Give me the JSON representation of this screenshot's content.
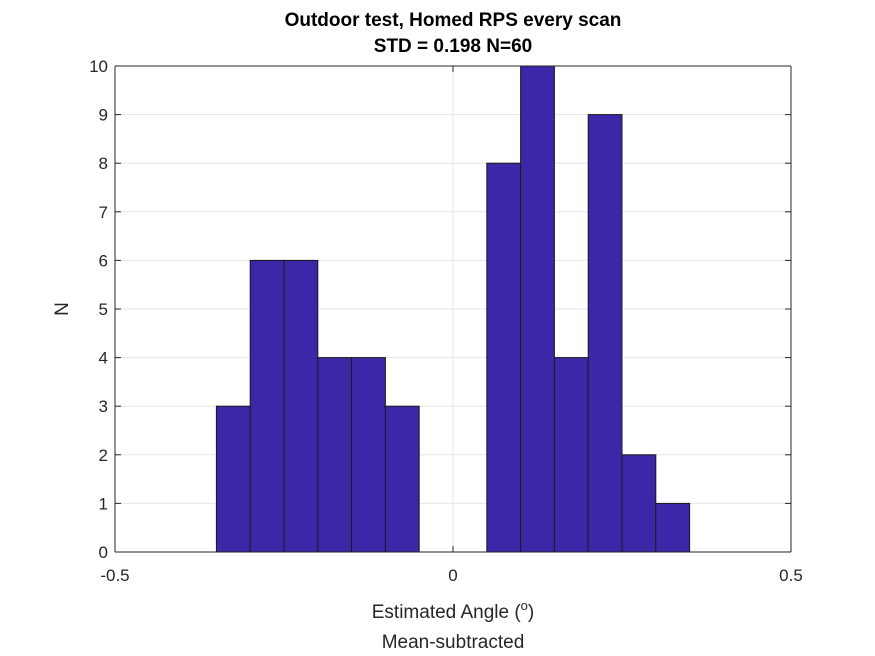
{
  "chart_data": {
    "type": "bar",
    "title": "Outdoor test, Homed RPS every scan",
    "subtitle": "STD = 0.198 N=60",
    "xlabel": "Estimated Angle (",
    "xlabel_superscript": "o",
    "xlabel_suffix": ")",
    "xlabel_line2": "Mean-subtracted",
    "ylabel": "N",
    "xlim": [
      -0.5,
      0.5
    ],
    "ylim": [
      0,
      10
    ],
    "xticks": [
      -0.5,
      0,
      0.5
    ],
    "xtick_labels": [
      "-0.5",
      "0",
      "0.5"
    ],
    "yticks": [
      0,
      1,
      2,
      3,
      4,
      5,
      6,
      7,
      8,
      9,
      10
    ],
    "ytick_labels": [
      "0",
      "1",
      "2",
      "3",
      "4",
      "5",
      "6",
      "7",
      "8",
      "9",
      "10"
    ],
    "bin_width": 0.05,
    "bin_starts": [
      -0.35,
      -0.3,
      -0.25,
      -0.2,
      -0.15,
      -0.1,
      -0.05,
      0.0,
      0.05,
      0.1,
      0.15,
      0.2,
      0.25,
      0.3
    ],
    "values": [
      3,
      6,
      6,
      4,
      4,
      3,
      0,
      0,
      8,
      10,
      4,
      9,
      2,
      1
    ],
    "grid": true,
    "bar_color": "#3a28a8",
    "edge_color": "#1a1a1a"
  }
}
